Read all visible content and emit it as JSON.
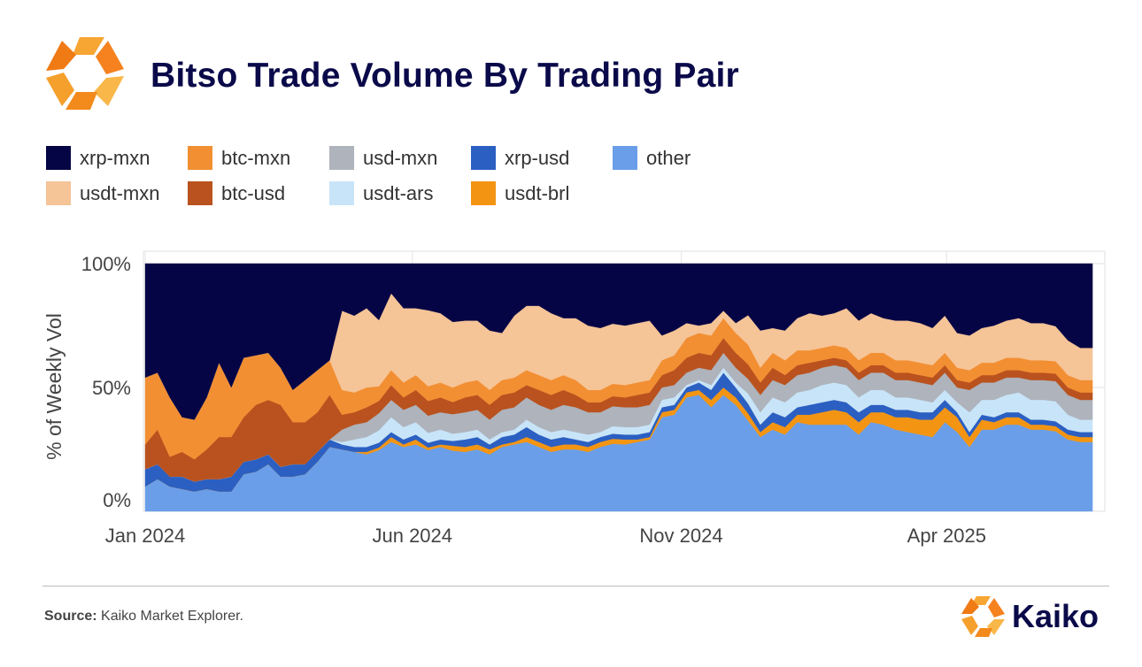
{
  "header": {
    "title": "Bitso Trade Volume By Trading Pair"
  },
  "colors": {
    "xrp-mxn": "#050545",
    "usdt-mxn": "#f5c497",
    "btc-mxn": "#f28f33",
    "btc-usd": "#b9521e",
    "usd-mxn": "#aeb3bc",
    "usdt-ars": "#c8e4f8",
    "xrp-usd": "#2b5fc2",
    "usdt-brl": "#f39513",
    "other": "#6b9ee8",
    "brand_orange": "#f5821f",
    "brand_navy": "#0a0a4a"
  },
  "legend": [
    {
      "key": "xrp-mxn",
      "label": "xrp-mxn"
    },
    {
      "key": "usdt-mxn",
      "label": "usdt-mxn"
    },
    {
      "key": "btc-mxn",
      "label": "btc-mxn"
    },
    {
      "key": "btc-usd",
      "label": "btc-usd"
    },
    {
      "key": "usd-mxn",
      "label": "usd-mxn"
    },
    {
      "key": "usdt-ars",
      "label": "usdt-ars"
    },
    {
      "key": "xrp-usd",
      "label": "xrp-usd"
    },
    {
      "key": "usdt-brl",
      "label": "usdt-brl"
    },
    {
      "key": "other",
      "label": "other"
    }
  ],
  "chart_data": {
    "type": "area",
    "stacked": true,
    "normalized": true,
    "ylabel": "% of  Weekly Vol",
    "yticks": [
      "0%",
      "50%",
      "100%"
    ],
    "ylim": [
      0,
      100
    ],
    "xticks": [
      "Jan 2024",
      "Jun 2024",
      "Nov 2024",
      "Apr 2025"
    ],
    "xlim": [
      "2023-12-31",
      "2025-06-30"
    ],
    "x": [
      "2024-01-01",
      "2024-01-08",
      "2024-01-15",
      "2024-01-22",
      "2024-01-29",
      "2024-02-05",
      "2024-02-12",
      "2024-02-19",
      "2024-02-26",
      "2024-03-04",
      "2024-03-11",
      "2024-03-18",
      "2024-03-25",
      "2024-04-01",
      "2024-04-08",
      "2024-04-15",
      "2024-04-22",
      "2024-04-29",
      "2024-05-06",
      "2024-05-13",
      "2024-05-20",
      "2024-05-27",
      "2024-06-03",
      "2024-06-10",
      "2024-06-17",
      "2024-06-24",
      "2024-07-01",
      "2024-07-08",
      "2024-07-15",
      "2024-07-22",
      "2024-07-29",
      "2024-08-05",
      "2024-08-12",
      "2024-08-19",
      "2024-08-26",
      "2024-09-02",
      "2024-09-09",
      "2024-09-16",
      "2024-09-23",
      "2024-09-30",
      "2024-10-07",
      "2024-10-14",
      "2024-10-21",
      "2024-10-28",
      "2024-11-04",
      "2024-11-11",
      "2024-11-18",
      "2024-11-25",
      "2024-12-02",
      "2024-12-09",
      "2024-12-16",
      "2024-12-23",
      "2024-12-30",
      "2025-01-06",
      "2025-01-13",
      "2025-01-20",
      "2025-01-27",
      "2025-02-03",
      "2025-02-10",
      "2025-02-17",
      "2025-02-24",
      "2025-03-03",
      "2025-03-10",
      "2025-03-17",
      "2025-03-24",
      "2025-03-31",
      "2025-04-07",
      "2025-04-14",
      "2025-04-21",
      "2025-04-28",
      "2025-05-05",
      "2025-05-12",
      "2025-05-19",
      "2025-05-26",
      "2025-06-02",
      "2025-06-09",
      "2025-06-16",
      "2025-06-23"
    ],
    "series": [
      {
        "name": "other",
        "values": [
          10,
          13,
          10,
          9,
          8,
          9,
          8,
          8,
          15,
          16,
          19,
          14,
          14,
          15,
          20,
          26,
          25,
          24,
          23,
          25,
          28,
          26,
          27,
          25,
          26,
          25,
          24,
          25,
          23,
          26,
          27,
          28,
          26,
          24,
          25,
          25,
          24,
          26,
          27,
          27,
          28,
          29,
          38,
          39,
          46,
          47,
          42,
          47,
          43,
          37,
          30,
          33,
          31,
          36,
          35,
          35,
          35,
          35,
          31,
          36,
          35,
          33,
          32,
          31,
          30,
          36,
          32,
          26,
          33,
          33,
          35,
          35,
          33,
          33,
          32,
          29,
          28,
          28
        ]
      },
      {
        "name": "usdt-brl",
        "values": [
          0,
          0,
          0,
          0,
          0,
          0,
          0,
          0,
          0,
          0,
          0,
          0,
          0,
          0,
          0,
          0,
          0,
          0,
          1,
          1,
          2,
          1,
          2,
          1,
          1,
          2,
          2,
          2,
          2,
          1,
          1,
          2,
          2,
          2,
          2,
          2,
          2,
          2,
          2,
          2,
          1,
          1,
          2,
          2,
          2,
          2,
          3,
          3,
          3,
          3,
          2,
          3,
          3,
          3,
          4,
          5,
          6,
          5,
          5,
          4,
          5,
          5,
          6,
          6,
          7,
          6,
          6,
          4,
          4,
          3,
          3,
          3,
          2,
          2,
          2,
          2,
          2,
          2
        ]
      },
      {
        "name": "xrp-usd",
        "values": [
          7,
          6,
          4,
          5,
          4,
          4,
          5,
          6,
          5,
          5,
          4,
          4,
          5,
          4,
          4,
          3,
          2,
          2,
          2,
          2,
          2,
          2,
          2,
          2,
          2,
          2,
          3,
          3,
          2,
          3,
          3,
          4,
          3,
          3,
          3,
          2,
          2,
          2,
          2,
          2,
          2,
          2,
          2,
          2,
          2,
          3,
          4,
          6,
          4,
          4,
          3,
          4,
          4,
          3,
          4,
          4,
          4,
          4,
          4,
          3,
          3,
          3,
          3,
          3,
          3,
          3,
          2,
          2,
          2,
          2,
          2,
          2,
          2,
          2,
          2,
          2,
          2,
          2
        ]
      },
      {
        "name": "usdt-ars",
        "values": [
          0,
          0,
          0,
          0,
          0,
          0,
          0,
          0,
          0,
          0,
          0,
          0,
          0,
          0,
          0,
          0,
          1,
          3,
          4,
          5,
          6,
          5,
          5,
          4,
          4,
          3,
          3,
          3,
          2,
          2,
          2,
          3,
          3,
          3,
          3,
          3,
          3,
          2,
          3,
          3,
          3,
          3,
          3,
          3,
          1,
          1,
          2,
          2,
          2,
          4,
          5,
          6,
          6,
          6,
          6,
          7,
          7,
          7,
          6,
          6,
          6,
          5,
          5,
          5,
          4,
          4,
          4,
          8,
          6,
          7,
          7,
          8,
          8,
          8,
          8,
          6,
          5,
          5
        ]
      },
      {
        "name": "usd-mxn",
        "values": [
          0,
          0,
          0,
          0,
          0,
          0,
          0,
          0,
          0,
          0,
          0,
          0,
          0,
          0,
          0,
          0,
          5,
          6,
          6,
          7,
          7,
          7,
          7,
          7,
          7,
          8,
          8,
          8,
          8,
          9,
          9,
          9,
          9,
          9,
          10,
          10,
          9,
          8,
          8,
          8,
          8,
          8,
          5,
          5,
          5,
          5,
          6,
          6,
          6,
          6,
          7,
          7,
          7,
          7,
          7,
          7,
          7,
          7,
          7,
          7,
          7,
          7,
          7,
          7,
          7,
          7,
          6,
          9,
          7,
          7,
          7,
          6,
          8,
          8,
          8,
          8,
          8,
          8
        ]
      },
      {
        "name": "btc-usd",
        "values": [
          10,
          14,
          8,
          10,
          9,
          12,
          17,
          16,
          18,
          22,
          22,
          25,
          17,
          17,
          16,
          18,
          6,
          5,
          6,
          5,
          6,
          5,
          6,
          6,
          6,
          5,
          6,
          6,
          6,
          6,
          6,
          5,
          6,
          6,
          6,
          5,
          4,
          4,
          4,
          4,
          5,
          5,
          5,
          6,
          6,
          6,
          6,
          6,
          6,
          6,
          5,
          5,
          4,
          4,
          4,
          3,
          3,
          3,
          3,
          3,
          3,
          3,
          3,
          3,
          3,
          3,
          3,
          3,
          3,
          3,
          3,
          3,
          3,
          3,
          3,
          3,
          3,
          3
        ]
      },
      {
        "name": "btc-mxn",
        "values": [
          27,
          23,
          24,
          14,
          16,
          21,
          30,
          20,
          24,
          20,
          19,
          15,
          13,
          17,
          17,
          14,
          10,
          8,
          8,
          6,
          6,
          6,
          6,
          6,
          6,
          6,
          6,
          6,
          6,
          6,
          6,
          6,
          6,
          6,
          6,
          6,
          5,
          5,
          5,
          5,
          5,
          5,
          6,
          6,
          8,
          8,
          8,
          8,
          8,
          8,
          6,
          6,
          6,
          6,
          5,
          5,
          5,
          5,
          5,
          5,
          5,
          5,
          5,
          5,
          5,
          5,
          5,
          5,
          5,
          5,
          5,
          5,
          5,
          5,
          5,
          5,
          5,
          5
        ]
      },
      {
        "name": "usdt-mxn",
        "values": [
          0,
          0,
          0,
          0,
          0,
          0,
          0,
          0,
          0,
          0,
          0,
          0,
          0,
          0,
          0,
          0,
          32,
          31,
          32,
          27,
          31,
          30,
          27,
          31,
          28,
          27,
          25,
          24,
          24,
          19,
          25,
          26,
          28,
          27,
          23,
          25,
          26,
          25,
          24,
          24,
          24,
          24,
          10,
          10,
          6,
          3,
          5,
          3,
          4,
          12,
          15,
          10,
          12,
          13,
          15,
          13,
          13,
          16,
          16,
          16,
          14,
          16,
          16,
          16,
          15,
          15,
          14,
          14,
          14,
          15,
          15,
          16,
          15,
          15,
          14,
          14,
          13,
          13
        ]
      },
      {
        "name": "xrp-mxn",
        "values": [
          46,
          44,
          54,
          62,
          63,
          54,
          40,
          50,
          38,
          37,
          36,
          42,
          51,
          47,
          43,
          39,
          19,
          21,
          18,
          23,
          12,
          18,
          18,
          19,
          20,
          24,
          23,
          23,
          27,
          28,
          21,
          17,
          17,
          20,
          22,
          22,
          25,
          26,
          24,
          25,
          24,
          23,
          29,
          27,
          24,
          25,
          24,
          19,
          24,
          21,
          27,
          26,
          27,
          22,
          20,
          21,
          20,
          18,
          23,
          20,
          22,
          23,
          23,
          24,
          26,
          21,
          28,
          29,
          26,
          25,
          23,
          22,
          24,
          24,
          25,
          31,
          34,
          34
        ]
      }
    ]
  },
  "footer": {
    "source_label": "Source:",
    "source_text": "Kaiko Market Explorer.",
    "brand_name": "Kaiko"
  }
}
